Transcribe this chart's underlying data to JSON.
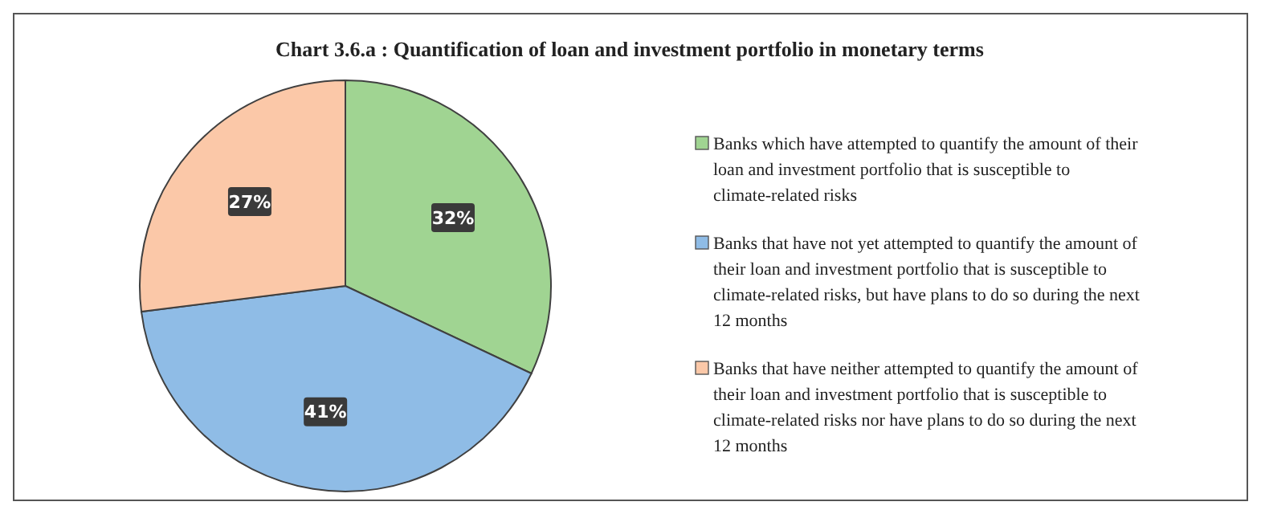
{
  "chart_data": {
    "type": "pie",
    "title": "Chart 3.6.a : Quantification of loan and investment portfolio in monetary terms",
    "categories": [
      "Banks which have attempted to quantify the amount of their loan and investment portfolio that is susceptible to climate-related risks",
      "Banks that have not yet attempted to quantify the amount of their loan and investment portfolio that is susceptible to climate-related risks, but have plans to do so during the next 12 months",
      "Banks that have neither attempted to quantify the amount of their loan and investment portfolio that is susceptible to climate-related risks nor have plans to do so during the next 12 months"
    ],
    "values": [
      32,
      41,
      27
    ],
    "colors": [
      "#a0d492",
      "#8fbce6",
      "#fbc8a8"
    ],
    "value_labels": [
      "32%",
      "41%",
      "27%"
    ],
    "legend": "right"
  }
}
